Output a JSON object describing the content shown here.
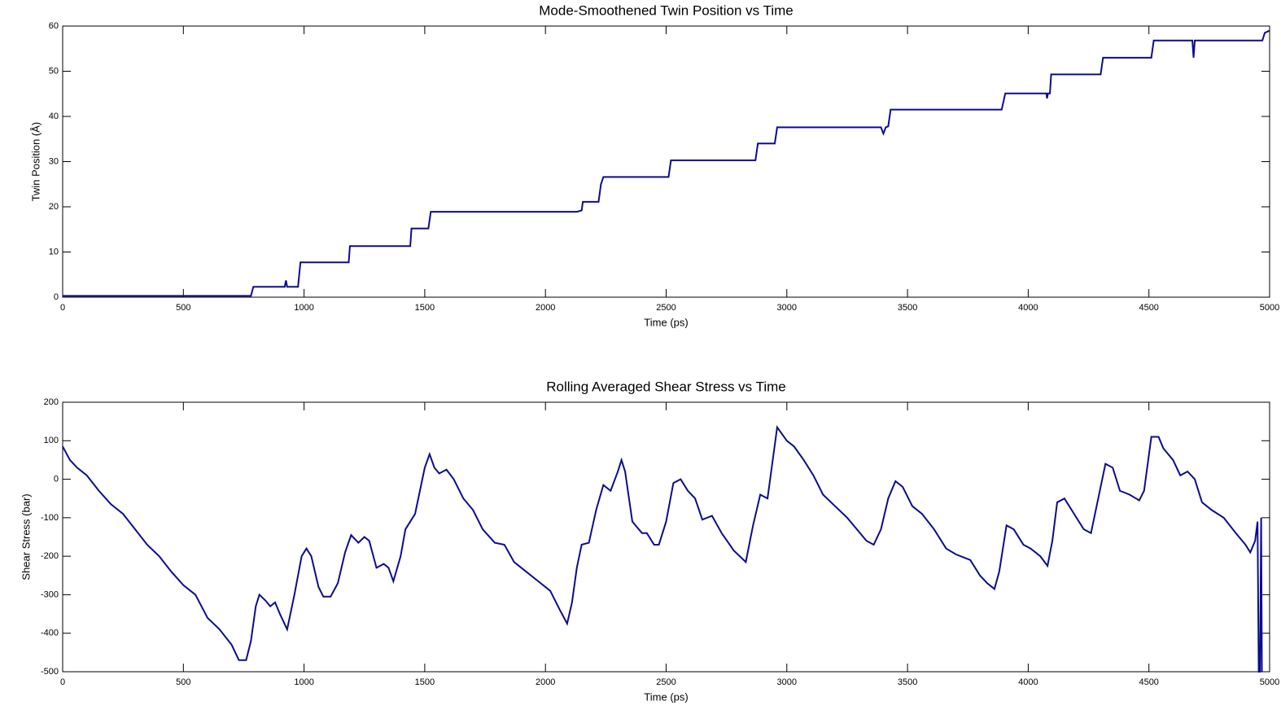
{
  "chart_data": [
    {
      "type": "line",
      "title": "Mode-Smoothened Twin Position vs Time",
      "x_label": "Time (ps)",
      "y_label": "Twin Position (Å)",
      "color": "#0c0c8f",
      "xlim": [
        0,
        5000
      ],
      "xticks": [
        0,
        500,
        1000,
        1500,
        2000,
        2500,
        3000,
        3500,
        4000,
        4500,
        5000
      ],
      "ylim": [
        0,
        60
      ],
      "yticks": [
        0,
        10,
        20,
        30,
        40,
        50,
        60
      ],
      "x": [
        0,
        780,
        790,
        920,
        925,
        930,
        975,
        985,
        1185,
        1190,
        1440,
        1445,
        1515,
        1525,
        2130,
        2150,
        2155,
        2220,
        2230,
        2240,
        2510,
        2520,
        2870,
        2880,
        2950,
        2960,
        3390,
        3400,
        3410,
        3420,
        3430,
        3890,
        3905,
        4075,
        4078,
        4082,
        4090,
        4095,
        4300,
        4310,
        4510,
        4520,
        4680,
        4685,
        4690,
        4970,
        4980,
        5000
      ],
      "values": [
        0.3,
        0.3,
        2.3,
        2.3,
        3.7,
        2.3,
        2.3,
        7.7,
        7.7,
        11.3,
        11.3,
        15.2,
        15.2,
        18.9,
        18.9,
        19.2,
        21.1,
        21.1,
        25,
        26.6,
        26.6,
        30.3,
        30.3,
        34,
        34,
        37.6,
        37.6,
        36.2,
        37.6,
        37.8,
        41.5,
        41.5,
        45.1,
        45.1,
        44,
        45.1,
        45.1,
        49.3,
        49.3,
        53,
        53,
        56.8,
        56.8,
        53,
        56.8,
        56.8,
        58.5,
        59
      ]
    },
    {
      "type": "line",
      "title": "Rolling Averaged Shear Stress vs Time",
      "x_label": "Time (ps)",
      "y_label": "Shear Stress (bar)",
      "color": "#0c0c8f",
      "xlim": [
        0,
        5000
      ],
      "xticks": [
        0,
        500,
        1000,
        1500,
        2000,
        2500,
        3000,
        3500,
        4000,
        4500,
        5000
      ],
      "ylim": [
        -500,
        200
      ],
      "yticks": [
        -500,
        -400,
        -300,
        -200,
        -100,
        0,
        100,
        200
      ],
      "x": [
        0,
        30,
        60,
        100,
        150,
        200,
        250,
        300,
        350,
        400,
        450,
        500,
        550,
        600,
        650,
        700,
        730,
        760,
        780,
        800,
        815,
        840,
        860,
        880,
        900,
        930,
        960,
        990,
        1010,
        1030,
        1060,
        1080,
        1110,
        1140,
        1170,
        1195,
        1225,
        1250,
        1270,
        1300,
        1330,
        1350,
        1370,
        1400,
        1420,
        1460,
        1480,
        1500,
        1520,
        1540,
        1560,
        1590,
        1620,
        1660,
        1700,
        1740,
        1790,
        1830,
        1870,
        1920,
        1970,
        2020,
        2060,
        2090,
        2110,
        2130,
        2150,
        2180,
        2210,
        2240,
        2270,
        2300,
        2315,
        2330,
        2360,
        2400,
        2420,
        2450,
        2470,
        2500,
        2530,
        2560,
        2590,
        2620,
        2650,
        2690,
        2730,
        2780,
        2830,
        2860,
        2890,
        2920,
        2960,
        3000,
        3030,
        3070,
        3110,
        3150,
        3200,
        3250,
        3290,
        3330,
        3360,
        3390,
        3420,
        3450,
        3480,
        3520,
        3560,
        3610,
        3660,
        3700,
        3760,
        3800,
        3830,
        3860,
        3880,
        3910,
        3940,
        3980,
        4010,
        4050,
        4080,
        4100,
        4120,
        4150,
        4190,
        4230,
        4260,
        4290,
        4320,
        4350,
        4380,
        4420,
        4460,
        4480,
        4510,
        4540,
        4560,
        4600,
        4630,
        4660,
        4690,
        4720,
        4760,
        4810,
        4860,
        4900,
        4920,
        4940,
        4950,
        4955,
        4960,
        4965,
        4968
      ],
      "values": [
        85,
        50,
        30,
        10,
        -30,
        -65,
        -90,
        -130,
        -170,
        -200,
        -240,
        -275,
        -300,
        -360,
        -390,
        -430,
        -470,
        -470,
        -420,
        -330,
        -300,
        -315,
        -330,
        -320,
        -350,
        -390,
        -300,
        -200,
        -180,
        -200,
        -280,
        -305,
        -305,
        -270,
        -190,
        -145,
        -165,
        -150,
        -160,
        -230,
        -220,
        -230,
        -265,
        -200,
        -130,
        -90,
        -30,
        30,
        65,
        30,
        15,
        25,
        0,
        -50,
        -80,
        -130,
        -165,
        -170,
        -215,
        -240,
        -265,
        -290,
        -340,
        -375,
        -320,
        -230,
        -170,
        -165,
        -80,
        -15,
        -30,
        20,
        50,
        20,
        -110,
        -140,
        -140,
        -170,
        -170,
        -110,
        -10,
        0,
        -30,
        -50,
        -105,
        -95,
        -140,
        -185,
        -215,
        -120,
        -40,
        -50,
        135,
        100,
        85,
        50,
        10,
        -40,
        -70,
        -100,
        -130,
        -160,
        -170,
        -130,
        -50,
        -5,
        -20,
        -70,
        -90,
        -130,
        -180,
        -195,
        -210,
        -250,
        -270,
        -285,
        -240,
        -120,
        -130,
        -170,
        -180,
        -200,
        -225,
        -160,
        -60,
        -50,
        -90,
        -130,
        -140,
        -50,
        40,
        30,
        -30,
        -40,
        -55,
        -30,
        110,
        110,
        80,
        50,
        10,
        20,
        0,
        -60,
        -80,
        -100,
        -140,
        -170,
        -190,
        -160,
        -110,
        -500,
        -500,
        -100,
        -500
      ]
    }
  ]
}
